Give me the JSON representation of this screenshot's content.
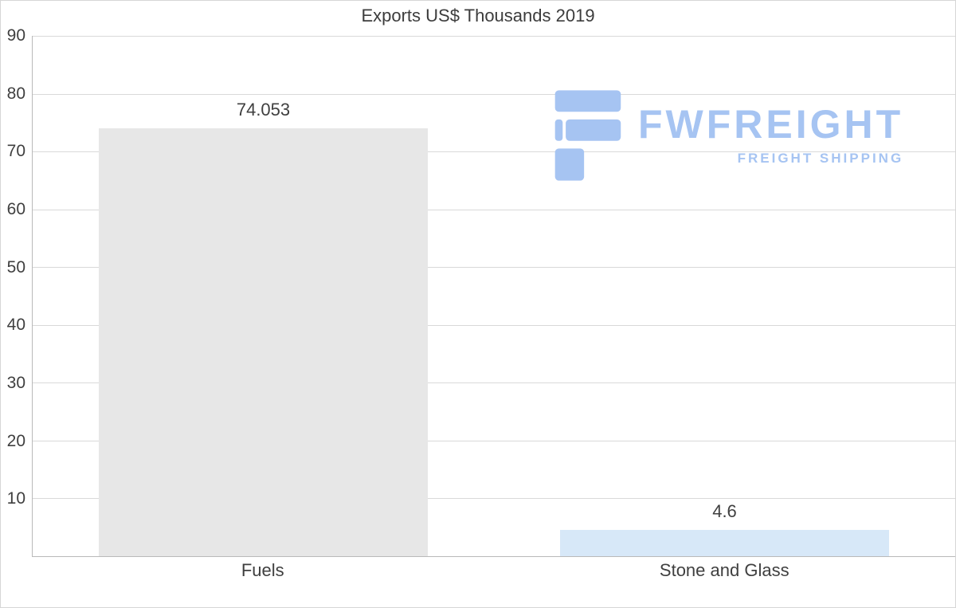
{
  "chart_data": {
    "type": "bar",
    "title": "Exports US$ Thousands 2019",
    "categories": [
      "Fuels",
      "Stone and Glass"
    ],
    "values": [
      74.053,
      4.6
    ],
    "value_labels": [
      "74.053",
      "4.6"
    ],
    "xlabel": "",
    "ylabel": "",
    "ylim": [
      0,
      90
    ],
    "ytick_labels": [
      "90",
      "80",
      "70",
      "60",
      "50",
      "40",
      "30",
      "20",
      "10"
    ],
    "grid": true,
    "legend_position": "none",
    "bar_colors": [
      "#e7e7e7",
      "#d7e8f8"
    ],
    "text_color": "#3f3f3f",
    "gridline_color": "#d9d9d9"
  },
  "watermark": {
    "brand": "FWFREIGHT",
    "tagline": "FREIGHT SHIPPING",
    "color": "#a6c4f2"
  }
}
